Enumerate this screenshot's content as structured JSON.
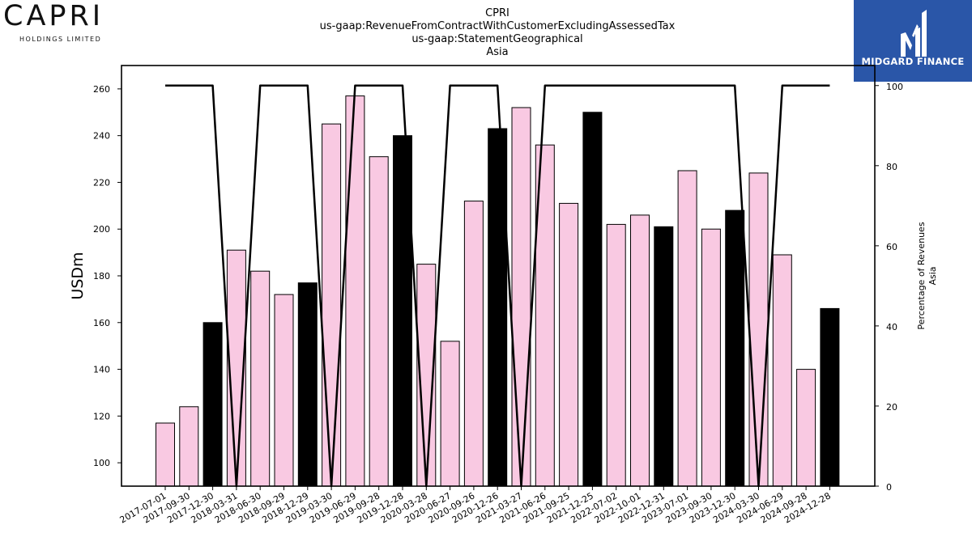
{
  "logos": {
    "left_name": "CAPRI",
    "left_sub": "HOLDINGS LIMITED",
    "right_name": "MIDGARD FINANCE",
    "right_bg": "#2a56a8"
  },
  "chart_data": {
    "type": "bar",
    "title_lines": [
      "CPRI",
      "us-gaap:RevenueFromContractWithCustomerExcludingAssessedTax",
      "us-gaap:StatementGeographical",
      "Asia"
    ],
    "ylabel": "USDm",
    "y2label_lines": [
      "Percentage of Revenues",
      "Asia"
    ],
    "ylim": [
      90,
      270
    ],
    "y2lim": [
      0,
      105
    ],
    "yticks": [
      100,
      120,
      140,
      160,
      180,
      200,
      220,
      240,
      260
    ],
    "y2ticks": [
      0,
      20,
      40,
      60,
      80,
      100
    ],
    "categories": [
      "2017-07-01",
      "2017-09-30",
      "2017-12-30",
      "2018-03-31",
      "2018-06-30",
      "2018-09-29",
      "2018-12-29",
      "2019-03-30",
      "2019-06-29",
      "2019-09-28",
      "2019-12-28",
      "2020-03-28",
      "2020-06-27",
      "2020-09-26",
      "2020-12-26",
      "2021-03-27",
      "2021-06-26",
      "2021-09-25",
      "2021-12-25",
      "2022-07-02",
      "2022-10-01",
      "2022-12-31",
      "2023-07-01",
      "2023-09-30",
      "2023-12-30",
      "2024-03-30",
      "2024-06-29",
      "2024-09-28",
      "2024-12-28"
    ],
    "values": [
      117,
      124,
      160,
      191,
      182,
      172,
      177,
      245,
      257,
      231,
      240,
      185,
      152,
      212,
      243,
      252,
      236,
      211,
      250,
      202,
      206,
      201,
      225,
      200,
      208,
      224,
      189,
      140,
      166
    ],
    "bar_colors": [
      "#f9c9e2",
      "#f9c9e2",
      "#000000",
      "#f9c9e2",
      "#f9c9e2",
      "#f9c9e2",
      "#000000",
      "#f9c9e2",
      "#f9c9e2",
      "#f9c9e2",
      "#000000",
      "#f9c9e2",
      "#f9c9e2",
      "#f9c9e2",
      "#000000",
      "#f9c9e2",
      "#f9c9e2",
      "#f9c9e2",
      "#000000",
      "#f9c9e2",
      "#f9c9e2",
      "#000000",
      "#f9c9e2",
      "#f9c9e2",
      "#000000",
      "#f9c9e2",
      "#f9c9e2",
      "#f9c9e2",
      "#000000"
    ],
    "line_values": [
      100,
      100,
      100,
      0,
      100,
      100,
      100,
      0,
      100,
      100,
      100,
      0,
      100,
      100,
      100,
      0,
      100,
      100,
      100,
      100,
      100,
      100,
      100,
      100,
      100,
      0,
      100,
      100,
      100
    ],
    "line_color": "#000000",
    "grid": false
  }
}
